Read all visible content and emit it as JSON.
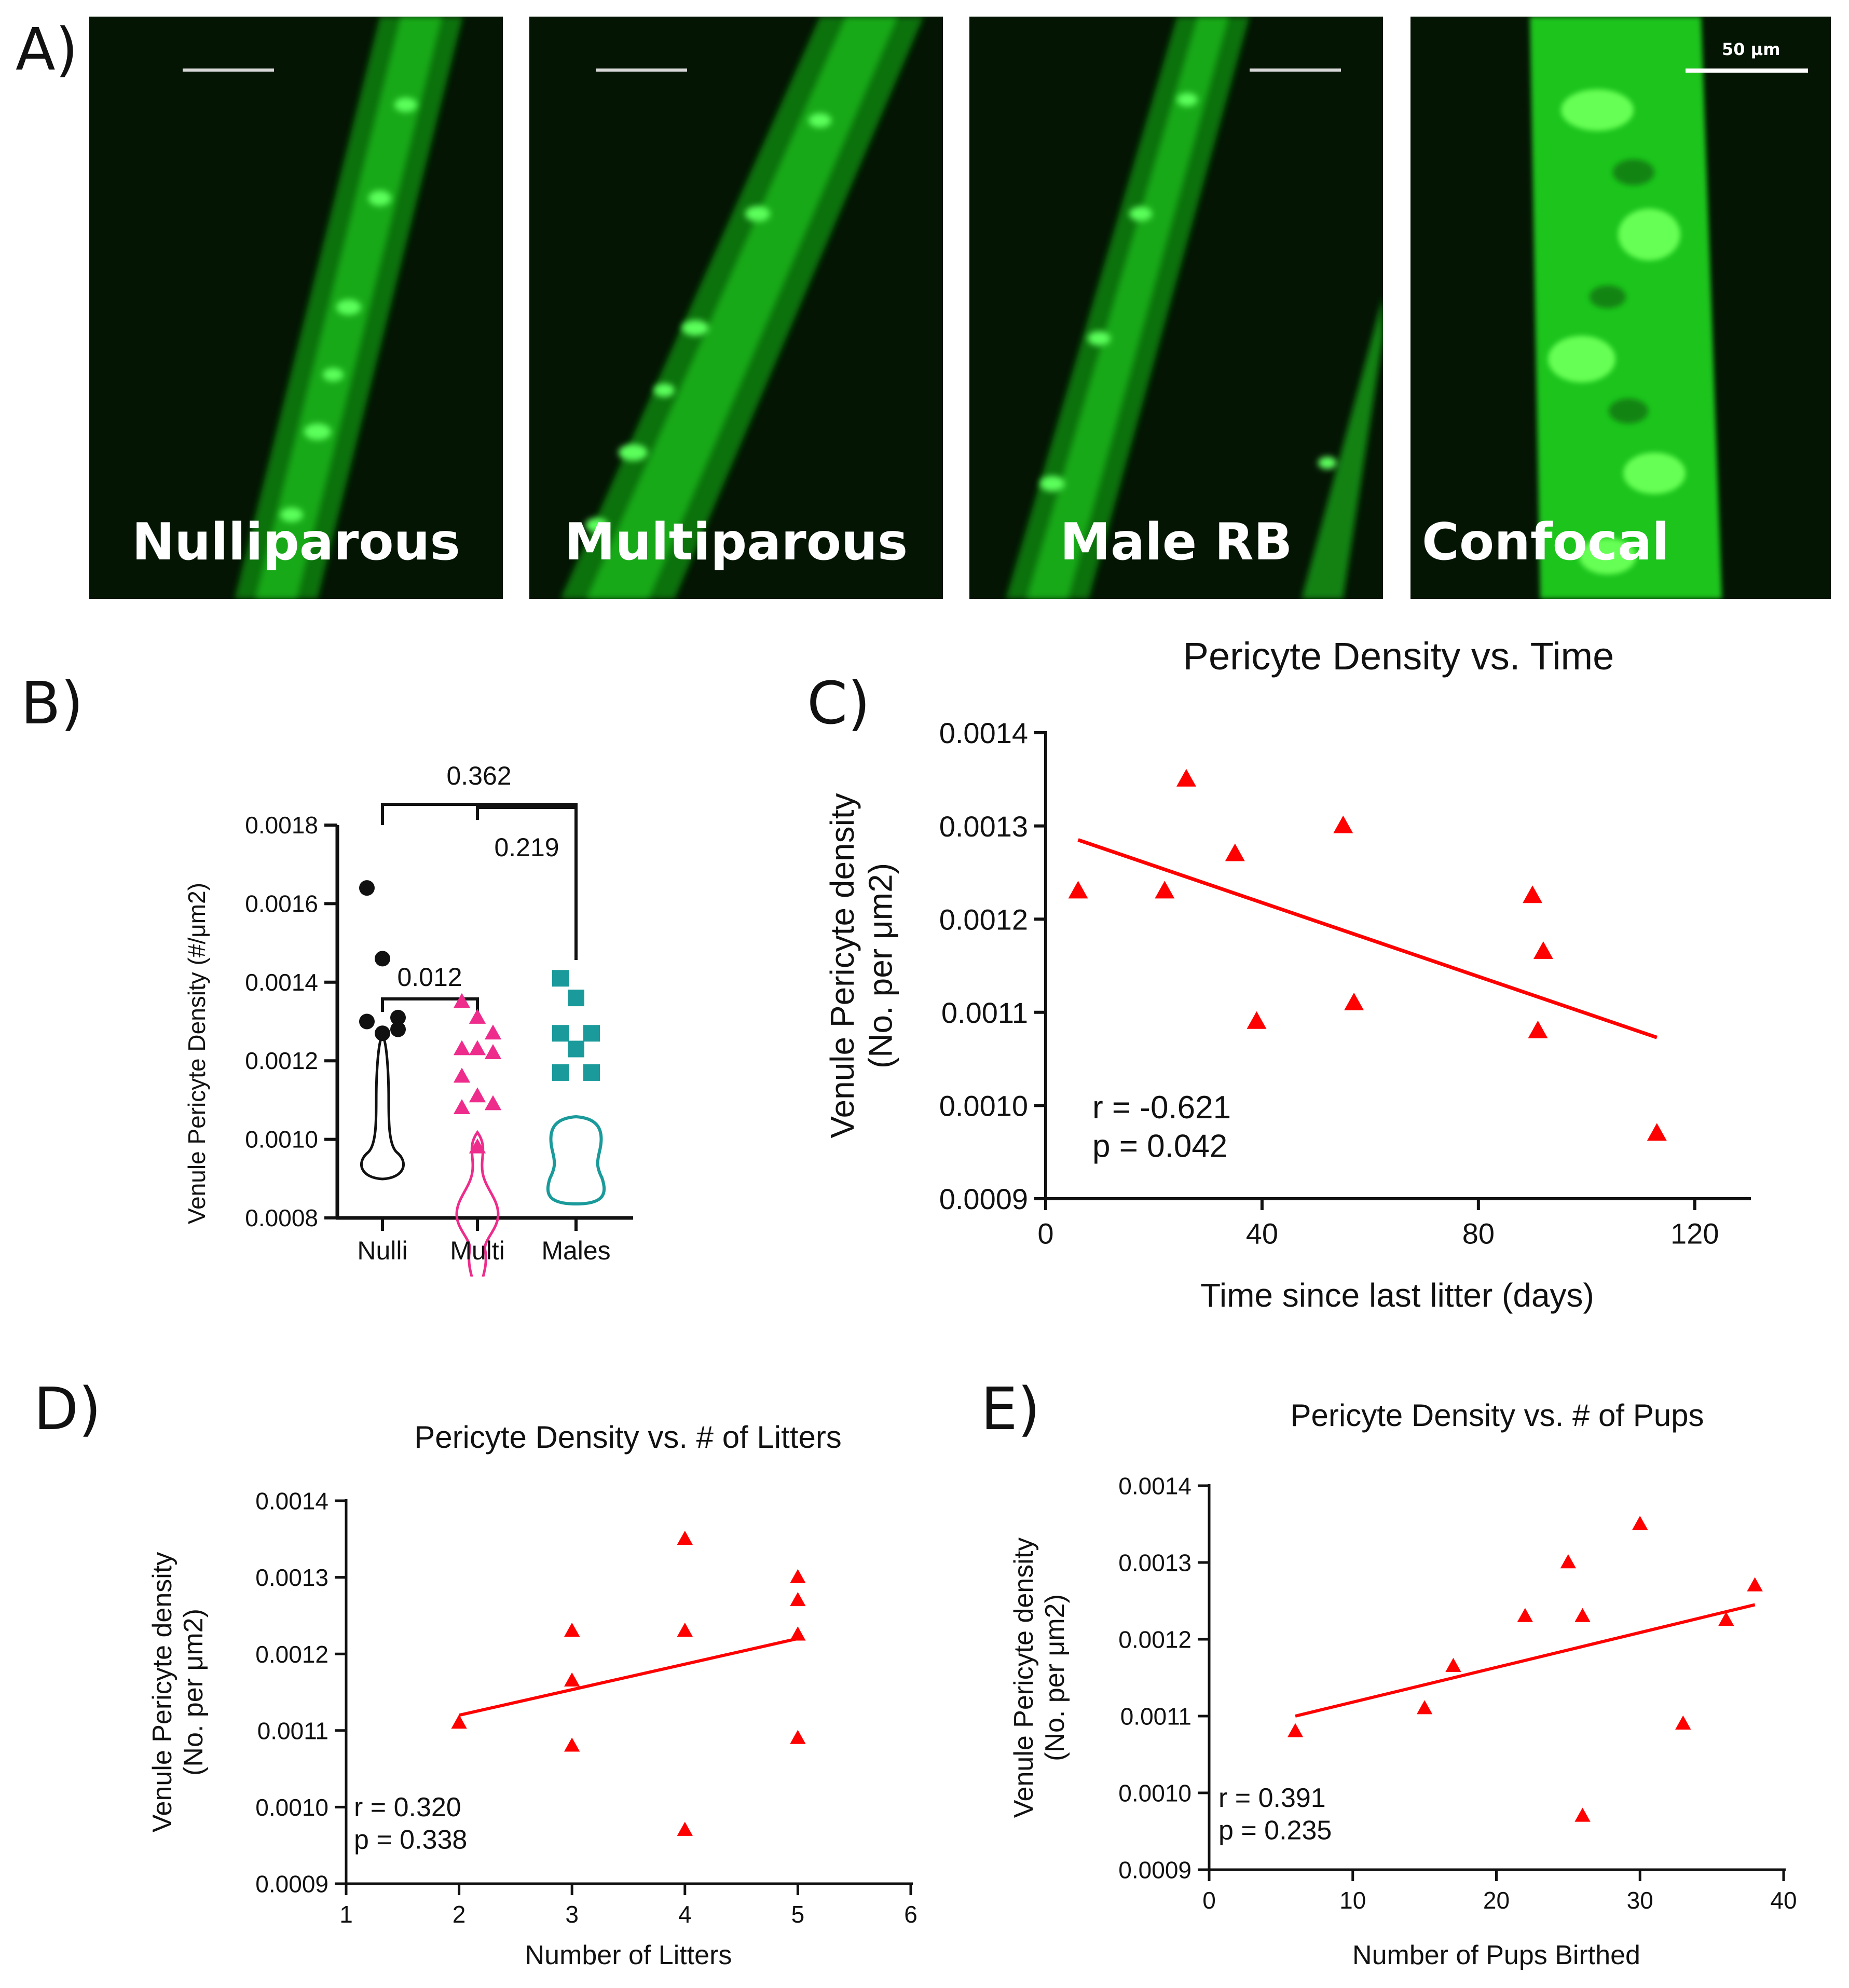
{
  "panel_letters": [
    "A)",
    "B)",
    "C)",
    "D)",
    "E)"
  ],
  "micrographs": [
    {
      "label": "Nulliparous"
    },
    {
      "label": "Multiparous"
    },
    {
      "label": "Male RB"
    },
    {
      "label": "Confocal",
      "scale_label": "50 μm"
    }
  ],
  "colors": {
    "fluor": "#22e022",
    "red": "#ff0000",
    "black": "#111111",
    "pink": "#ee2c8c",
    "teal": "#1a9a9a"
  },
  "chart_data": [
    {
      "id": "B",
      "type": "violin",
      "ylabel": "Venule Pericyte Density (#/μm2)",
      "ylim": [
        0.0008,
        0.0018
      ],
      "yticks": [
        "0.0008",
        "0.0010",
        "0.0012",
        "0.0014",
        "0.0016",
        "0.0018"
      ],
      "categories": [
        "Nulli",
        "Multi",
        "Males"
      ],
      "series": [
        {
          "name": "Nulli",
          "marker": "circle",
          "values": [
            0.00164,
            0.00146,
            0.00131,
            0.0013,
            0.00127,
            0.00128
          ]
        },
        {
          "name": "Multi",
          "marker": "triangle",
          "values": [
            0.00135,
            0.00131,
            0.00127,
            0.00123,
            0.00123,
            0.00122,
            0.00116,
            0.00111,
            0.00109,
            0.00108,
            0.00098
          ]
        },
        {
          "name": "Males",
          "marker": "square",
          "values": [
            0.00141,
            0.00136,
            0.00127,
            0.00127,
            0.00123,
            0.00117,
            0.00117
          ]
        }
      ],
      "comparisons": [
        {
          "pair": [
            "Nulli",
            "Males"
          ],
          "label": "0.362"
        },
        {
          "pair": [
            "Multi",
            "Males"
          ],
          "label": "0.219"
        },
        {
          "pair": [
            "Nulli",
            "Multi"
          ],
          "label": "0.012"
        }
      ]
    },
    {
      "id": "C",
      "type": "scatter",
      "title": "Pericyte Density vs. Time",
      "xlabel": "Time since last litter (days)",
      "ylabel_line1": "Venule Pericyte density",
      "ylabel_line2": "(No. per μm2)",
      "xlim": [
        0,
        130
      ],
      "ylim": [
        0.0009,
        0.0014
      ],
      "xticks": [
        "0",
        "40",
        "80",
        "120"
      ],
      "yticks": [
        "0.0009",
        "0.0010",
        "0.0011",
        "0.0012",
        "0.0013",
        "0.0014"
      ],
      "x": [
        6,
        22,
        26,
        35,
        39,
        55,
        57,
        90,
        91,
        92,
        113
      ],
      "y": [
        0.00123,
        0.00123,
        0.00135,
        0.00127,
        0.00109,
        0.0013,
        0.00111,
        0.001225,
        0.00108,
        0.001165,
        0.00097
      ],
      "fit": {
        "x": [
          6,
          113
        ],
        "y": [
          0.001285,
          0.001073
        ]
      },
      "r_text": "r = -0.621",
      "p_text": "p = 0.042"
    },
    {
      "id": "D",
      "type": "scatter",
      "title": "Pericyte Density vs. # of Litters",
      "xlabel": "Number of Litters",
      "ylabel_line1": "Venule Pericyte density",
      "ylabel_line2": "(No. per μm2)",
      "xlim": [
        1,
        6
      ],
      "ylim": [
        0.0009,
        0.0014
      ],
      "xticks": [
        "1",
        "2",
        "3",
        "4",
        "5",
        "6"
      ],
      "yticks": [
        "0.0009",
        "0.0010",
        "0.0011",
        "0.0012",
        "0.0013",
        "0.0014"
      ],
      "x": [
        2,
        3,
        3,
        3,
        4,
        4,
        4,
        5,
        5,
        5,
        5
      ],
      "y": [
        0.00111,
        0.00123,
        0.001165,
        0.00108,
        0.00135,
        0.00123,
        0.00097,
        0.0013,
        0.00127,
        0.001225,
        0.00109
      ],
      "fit": {
        "x": [
          2,
          5
        ],
        "y": [
          0.00112,
          0.00122
        ]
      },
      "r_text": "r = 0.320",
      "p_text": "p = 0.338"
    },
    {
      "id": "E",
      "type": "scatter",
      "title": "Pericyte Density vs. # of Pups",
      "xlabel": "Number of Pups Birthed",
      "ylabel_line1": "Venule Pericyte density",
      "ylabel_line2": "(No. per μm2)",
      "xlim": [
        0,
        40
      ],
      "ylim": [
        0.0009,
        0.0014
      ],
      "xticks": [
        "0",
        "10",
        "20",
        "30",
        "40"
      ],
      "yticks": [
        "0.0009",
        "0.0010",
        "0.0011",
        "0.0012",
        "0.0013",
        "0.0014"
      ],
      "x": [
        6,
        15,
        17,
        22,
        25,
        26,
        26,
        30,
        33,
        36,
        38
      ],
      "y": [
        0.00108,
        0.00111,
        0.001165,
        0.00123,
        0.0013,
        0.00123,
        0.00097,
        0.00135,
        0.00109,
        0.001225,
        0.00127
      ],
      "fit": {
        "x": [
          6,
          38
        ],
        "y": [
          0.0011,
          0.001245
        ]
      },
      "r_text": "r = 0.391",
      "p_text": "p = 0.235"
    }
  ]
}
